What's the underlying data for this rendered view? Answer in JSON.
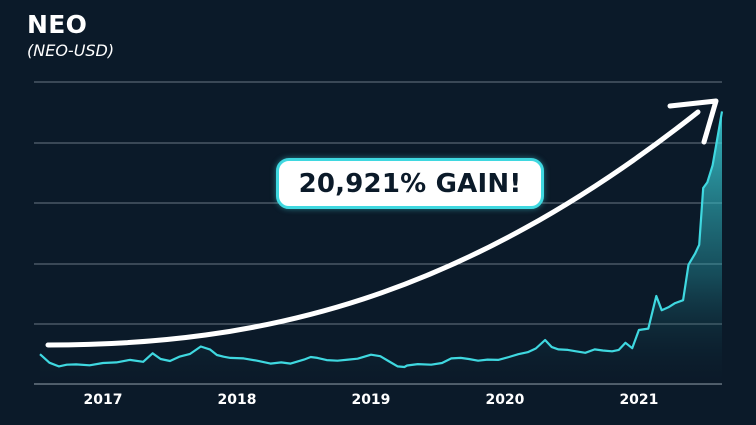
{
  "header": {
    "title": "NEO",
    "subtitle": "(NEO-USD)"
  },
  "callout": {
    "text": "20,921% GAIN!"
  },
  "colors": {
    "background": "#0b1a29",
    "line": "#3fd8e0",
    "grid": "#8a95a0",
    "arrow": "#ffffff"
  },
  "chart_data": {
    "type": "area",
    "title": "NEO",
    "subtitle": "(NEO-USD)",
    "xlabel": "",
    "ylabel": "",
    "x_ticks": [
      "2017",
      "2018",
      "2019",
      "2020",
      "2021"
    ],
    "grid": "horizontal",
    "y_axis_labels": "none",
    "annotation": "20,921% GAIN!",
    "series": [
      {
        "values_note_units": "relative price index, baseline ~10, peak ~96",
        "x": [
          2016.58,
          2016.65,
          2016.72,
          2016.78,
          2016.85,
          2016.95,
          2017.05,
          2017.15,
          2017.25,
          2017.35,
          2017.42,
          2017.48,
          2017.55,
          2017.62,
          2017.7,
          2017.78,
          2017.85,
          2017.9,
          2017.95,
          2018.0,
          2018.1,
          2018.2,
          2018.3,
          2018.38,
          2018.45,
          2018.55,
          2018.6,
          2018.65,
          2018.72,
          2018.8,
          2018.88,
          2018.95,
          2019.05,
          2019.12,
          2019.18,
          2019.25,
          2019.3,
          2019.32,
          2019.4,
          2019.5,
          2019.58,
          2019.65,
          2019.72,
          2019.78,
          2019.85,
          2019.92,
          2020.0,
          2020.08,
          2020.15,
          2020.22,
          2020.28,
          2020.35,
          2020.4,
          2020.45,
          2020.52,
          2020.58,
          2020.65,
          2020.72,
          2020.78,
          2020.85,
          2020.9,
          2020.95,
          2021.0,
          2021.05,
          2021.12,
          2021.18,
          2021.22,
          2021.27,
          2021.32,
          2021.38,
          2021.42,
          2021.47,
          2021.5,
          2021.53,
          2021.56,
          2021.6,
          2021.63,
          2021.67
        ],
        "values": [
          10.5,
          7.5,
          6.2,
          6.8,
          6.9,
          6.6,
          7.4,
          7.6,
          8.5,
          7.8,
          10.8,
          8.8,
          8.1,
          9.6,
          10.6,
          13.2,
          12.1,
          10.2,
          9.6,
          9.2,
          9.0,
          8.2,
          7.2,
          7.6,
          7.2,
          8.6,
          9.5,
          9.2,
          8.4,
          8.2,
          8.6,
          8.9,
          10.3,
          9.8,
          8.1,
          6.2,
          6.0,
          6.5,
          7.0,
          6.8,
          7.4,
          9.0,
          9.2,
          8.8,
          8.2,
          8.6,
          8.5,
          9.5,
          10.5,
          11.2,
          12.5,
          15.5,
          13.0,
          12.2,
          12.0,
          11.5,
          11.0,
          12.2,
          11.8,
          11.5,
          12.0,
          14.5,
          12.6,
          19.0,
          19.5,
          31.0,
          26.0,
          27.0,
          28.5,
          29.5,
          42.0,
          46.0,
          49.0,
          69.0,
          71.0,
          77.0,
          85.0,
          96.0
        ]
      }
    ],
    "ylim": [
      0,
      100
    ]
  }
}
